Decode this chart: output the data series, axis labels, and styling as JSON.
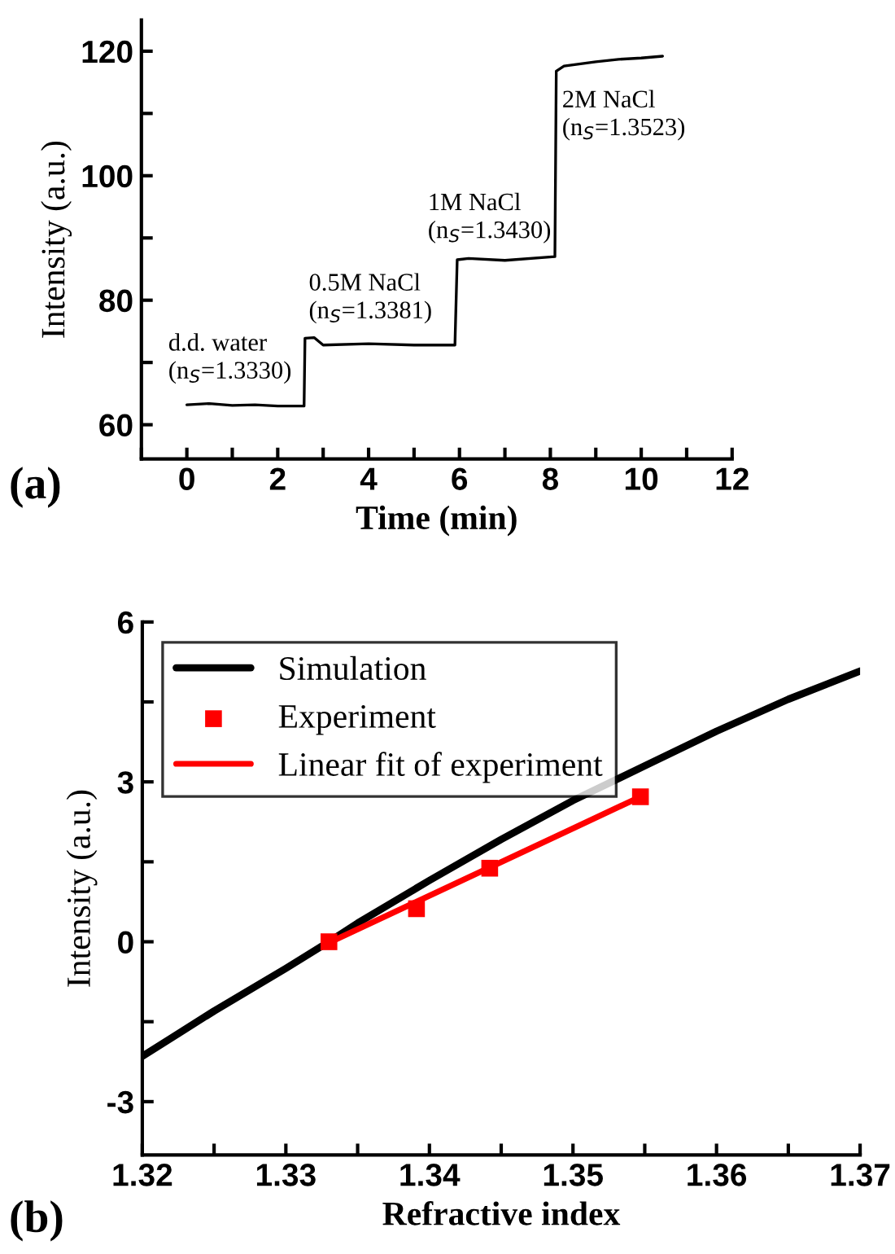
{
  "chart_data": [
    {
      "type": "line",
      "xlabel": "Time (min)",
      "ylabel": "Intensity (a.u.)",
      "xlim": [
        -1,
        12
      ],
      "ylim": [
        54.5,
        125
      ],
      "xticks": [
        {
          "value": -1,
          "label": null
        },
        0,
        {
          "value": 1,
          "label": null
        },
        2,
        {
          "value": 3,
          "label": null
        },
        4,
        {
          "value": 5,
          "label": null
        },
        6,
        {
          "value": 7,
          "label": null
        },
        8,
        {
          "value": 9,
          "label": null
        },
        10,
        {
          "value": 11,
          "label": null
        },
        12
      ],
      "yticks": [
        60,
        {
          "value": 70,
          "label": null
        },
        80,
        {
          "value": 90,
          "label": null
        },
        100,
        {
          "value": 110,
          "label": null
        },
        120
      ],
      "series": [
        {
          "color": "#000000",
          "x": [
            0,
            0.5,
            1,
            1.5,
            2,
            2.58,
            2.6,
            2.8,
            3.0,
            4,
            5,
            5.9,
            5.95,
            6.2,
            7,
            8.1,
            8.13,
            8.3,
            8.6,
            9,
            9.5,
            10,
            10.47
          ],
          "values": [
            63.2,
            63.4,
            63.1,
            63.2,
            63.0,
            63.0,
            73.9,
            74.0,
            72.8,
            73.0,
            72.8,
            72.8,
            86.5,
            86.7,
            86.4,
            87.0,
            116.8,
            117.6,
            117.9,
            118.3,
            118.7,
            118.9,
            119.2
          ]
        }
      ],
      "marker": "none",
      "line_style": "solid",
      "grid": false,
      "legend": false,
      "annotations": [
        "d.d. water\n(n$_{S}$=1.3330)",
        "0.5M NaCl\n(n$_{S}$=1.3381)",
        "1M NaCl\n(n$_{S}$=1.3430)",
        "2M NaCl\n(n$_{S}$=1.3523)",
        "(a)"
      ]
    },
    {
      "type": "line",
      "xlabel": "Refractive index",
      "ylabel": "Intensity (a.u.)",
      "xlim": [
        1.32,
        1.37
      ],
      "ylim": [
        -4,
        6
      ],
      "xticks": [
        {
          "value": 1.32,
          "label": "1.32"
        },
        {
          "value": 1.325,
          "label": null
        },
        {
          "value": 1.33,
          "label": "1.33"
        },
        {
          "value": 1.335,
          "label": null
        },
        {
          "value": 1.34,
          "label": "1.34"
        },
        {
          "value": 1.345,
          "label": null
        },
        {
          "value": 1.35,
          "label": "1.35"
        },
        {
          "value": 1.355,
          "label": null
        },
        {
          "value": 1.36,
          "label": "1.36"
        },
        {
          "value": 1.365,
          "label": null
        },
        {
          "value": 1.37,
          "label": "1.37"
        }
      ],
      "yticks": [
        -3,
        {
          "value": -1.5,
          "label": null
        },
        0,
        {
          "value": 1.5,
          "label": null
        },
        3,
        {
          "value": 4.5,
          "label": null
        },
        6
      ],
      "series": [
        {
          "name": "Simulation",
          "type": "line",
          "color": "#000000",
          "marker": "none",
          "x": [
            1.32,
            1.325,
            1.33,
            1.333,
            1.335,
            1.34,
            1.345,
            1.35,
            1.355,
            1.36,
            1.365,
            1.37
          ],
          "values": [
            -2.15,
            -1.3,
            -0.5,
            0,
            0.35,
            1.15,
            1.92,
            2.65,
            3.3,
            3.95,
            4.55,
            5.08
          ]
        },
        {
          "name": "Experiment",
          "type": "scatter",
          "color": "#ff0000",
          "marker": "square",
          "x": [
            1.333,
            1.3391,
            1.3442,
            1.3547
          ],
          "values": [
            0,
            0.62,
            1.38,
            2.72
          ]
        },
        {
          "name": "Linear fit of experiment",
          "type": "line",
          "color": "#ff0000",
          "marker": "none",
          "x": [
            1.333,
            1.3547
          ],
          "values": [
            -0.02,
            2.72
          ]
        }
      ],
      "line_style": "solid",
      "grid": false,
      "legend": "top left",
      "annotations": [
        "(b)"
      ]
    }
  ]
}
